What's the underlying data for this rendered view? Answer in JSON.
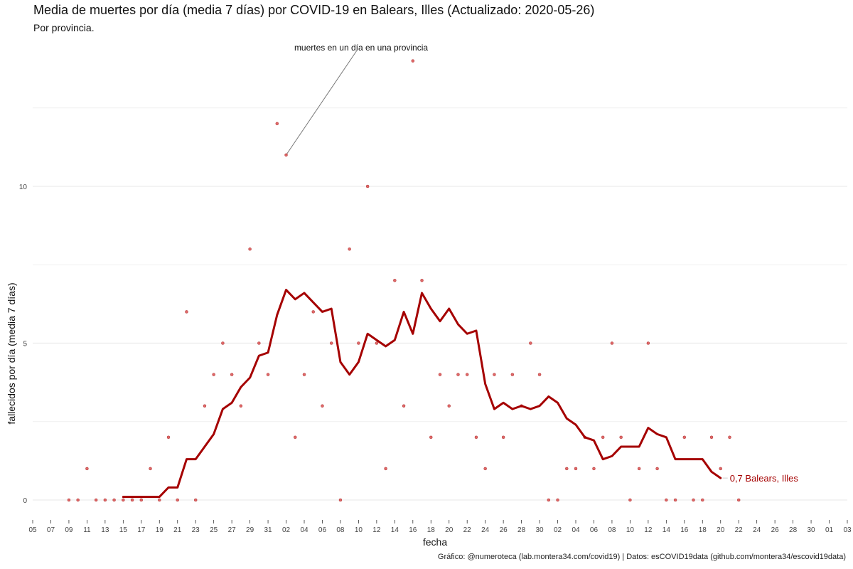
{
  "chart_data": {
    "type": "line",
    "title": "Media de muertes por día (media 7 días) por COVID-19 en Balears, Illes (Actualizado: 2020-05-26)",
    "subtitle": "Por provincia.",
    "xlabel": "fecha",
    "ylabel": "fallecidos por día (media 7 días)",
    "caption": "Gráfico: @numeroteca (lab.montera34.com/covid19) | Datos: esCOVID19data (github.com/montera34/escovid19data)",
    "annotation": "muertes en un día en una provincia",
    "end_label": "0,7 Balears, Illes",
    "colors": {
      "line": "#a50000",
      "points": "#d94f4f",
      "grid": "#ececec"
    },
    "grid": true,
    "legend": "none",
    "xlim": [
      "2020-03-05",
      "2020-06-03"
    ],
    "ylim": [
      0,
      14
    ],
    "y_ticks": [
      0,
      5,
      10
    ],
    "x_tick_start": "2020-03-05",
    "x_tick_step_days": 2,
    "x_tick_labels": [
      "05",
      "07",
      "09",
      "11",
      "13",
      "15",
      "17",
      "19",
      "21",
      "23",
      "25",
      "27",
      "29",
      "31",
      "02",
      "04",
      "06",
      "08",
      "10",
      "12",
      "14",
      "16",
      "18",
      "20",
      "22",
      "24",
      "26",
      "28",
      "30",
      "02",
      "04",
      "06",
      "08",
      "10",
      "12",
      "14",
      "16",
      "18",
      "20",
      "22",
      "24",
      "26",
      "28",
      "30",
      "01",
      "03"
    ],
    "series": [
      {
        "name": "Balears, Illes",
        "start_date": "2020-03-15",
        "values": [
          0.1,
          0.1,
          0.1,
          0.1,
          0.1,
          0.4,
          0.4,
          1.3,
          1.3,
          1.7,
          2.1,
          2.9,
          3.1,
          3.6,
          3.9,
          4.6,
          4.7,
          5.9,
          6.7,
          6.4,
          6.6,
          6.3,
          6.0,
          6.1,
          4.4,
          4.0,
          4.4,
          5.3,
          5.1,
          4.9,
          5.1,
          6.0,
          5.3,
          6.6,
          6.1,
          5.7,
          6.1,
          5.6,
          5.3,
          5.4,
          3.7,
          2.9,
          3.1,
          2.9,
          3.0,
          2.9,
          3.0,
          3.3,
          3.1,
          2.6,
          2.4,
          2.0,
          1.9,
          1.3,
          1.4,
          1.7,
          1.7,
          1.7,
          2.3,
          2.1,
          2.0,
          1.3,
          1.3,
          1.3,
          1.3,
          0.9,
          0.7
        ]
      }
    ],
    "daily_points": {
      "name": "muertes en un día en una provincia",
      "start_date": "2020-03-09",
      "values": [
        0,
        0,
        1,
        0,
        0,
        0,
        0,
        0,
        0,
        1,
        0,
        2,
        0,
        6,
        0,
        3,
        4,
        5,
        4,
        3,
        8,
        5,
        4,
        12,
        11,
        2,
        4,
        6,
        3,
        5,
        0,
        8,
        5,
        10,
        5,
        1,
        7,
        3,
        14,
        7,
        2,
        4,
        3,
        4,
        4,
        2,
        1,
        4,
        2,
        4,
        3,
        5,
        4,
        0,
        0,
        1,
        1,
        2,
        1,
        2,
        5,
        2,
        0,
        1,
        5,
        1,
        0,
        0,
        2,
        0,
        0,
        2,
        1,
        2,
        0
      ]
    }
  }
}
